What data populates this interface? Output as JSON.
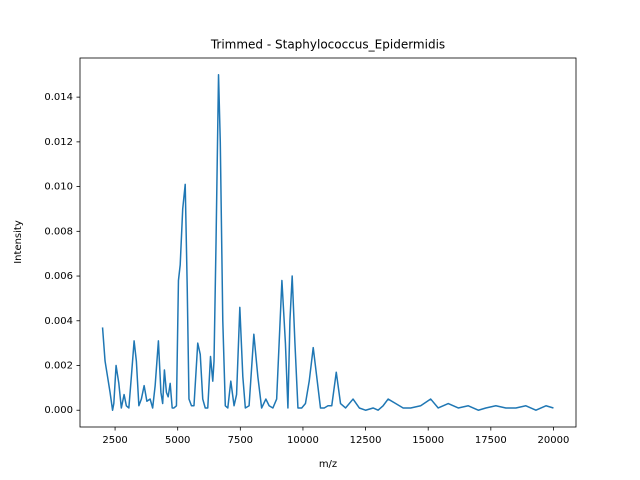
{
  "chart_data": {
    "type": "line",
    "title": "Trimmed - Staphylococcus_Epidermidis",
    "xlabel": "m/z",
    "ylabel": "Intensity",
    "x": [
      2000,
      2100,
      2200,
      2300,
      2400,
      2450,
      2540,
      2650,
      2750,
      2860,
      2950,
      3050,
      3150,
      3260,
      3350,
      3450,
      3550,
      3660,
      3770,
      3900,
      4000,
      4100,
      4230,
      4330,
      4400,
      4470,
      4550,
      4620,
      4700,
      4780,
      4850,
      4950,
      5030,
      5100,
      5200,
      5300,
      5380,
      5450,
      5550,
      5650,
      5800,
      5900,
      6000,
      6100,
      6200,
      6310,
      6400,
      6450,
      6530,
      6630,
      6700,
      6800,
      6900,
      7000,
      7120,
      7250,
      7350,
      7480,
      7600,
      7700,
      7850,
      8040,
      8200,
      8350,
      8520,
      8650,
      8800,
      8950,
      9160,
      9300,
      9400,
      9480,
      9570,
      9680,
      9800,
      9950,
      10100,
      10250,
      10410,
      10550,
      10700,
      10850,
      11000,
      11150,
      11330,
      11500,
      11700,
      12000,
      12250,
      12500,
      12800,
      13000,
      13200,
      13400,
      13700,
      14000,
      14300,
      14700,
      15100,
      15400,
      15800,
      16200,
      16600,
      17000,
      17300,
      17700,
      18100,
      18500,
      18900,
      19300,
      19700,
      20000
    ],
    "series": [
      {
        "color": "#1f77b4",
        "values": [
          0.0037,
          0.0022,
          0.0015,
          0.0008,
          0,
          0.0003,
          0.002,
          0.0012,
          0.0001,
          0.0007,
          0.0002,
          0.0001,
          0.0015,
          0.0031,
          0.0022,
          0.0002,
          0.0005,
          0.0011,
          0.0004,
          0.0005,
          0.0001,
          0.0011,
          0.0031,
          0.0008,
          0.0003,
          0.0018,
          0.0008,
          0.0006,
          0.0012,
          0.0001,
          0.0001,
          0.0002,
          0.0058,
          0.0065,
          0.009,
          0.0101,
          0.0055,
          0.0005,
          0.0002,
          0.0002,
          0.003,
          0.0025,
          0.0005,
          0.0001,
          0.0001,
          0.0024,
          0.0013,
          0.0022,
          0.0075,
          0.015,
          0.012,
          0.004,
          0.0002,
          0.0001,
          0.0013,
          0.0002,
          0.0007,
          0.0046,
          0.0015,
          0.0001,
          0.0002,
          0.0034,
          0.0015,
          0.0001,
          0.0005,
          0.0002,
          0.0001,
          0.0005,
          0.0058,
          0.003,
          0.0001,
          0.004,
          0.006,
          0.003,
          0.0001,
          0.0001,
          0.0003,
          0.0013,
          0.0028,
          0.0015,
          0.0001,
          0.0001,
          0.0002,
          0.0002,
          0.0017,
          0.0003,
          0.0001,
          0.0005,
          0.0001,
          0,
          0.0001,
          0,
          0.0002,
          0.0005,
          0.0003,
          0.0001,
          0.0001,
          0.0002,
          0.0005,
          0.0001,
          0.0003,
          0.0001,
          0.0002,
          0,
          0.0001,
          0.0002,
          0.0001,
          0.0001,
          0.0002,
          0,
          0.0002,
          0.0001
        ]
      }
    ],
    "xlim": [
      1100,
      20900
    ],
    "xticks": [
      2500,
      5000,
      7500,
      10000,
      12500,
      15000,
      17500,
      20000
    ],
    "ylim": [
      -0.00075,
      0.01575
    ],
    "yticks": [
      {
        "value": 0,
        "label": "0.000"
      },
      0.002,
      0.004,
      0.006,
      0.008,
      {
        "value": 0.01,
        "label": "0.010"
      },
      0.012,
      0.014
    ]
  }
}
